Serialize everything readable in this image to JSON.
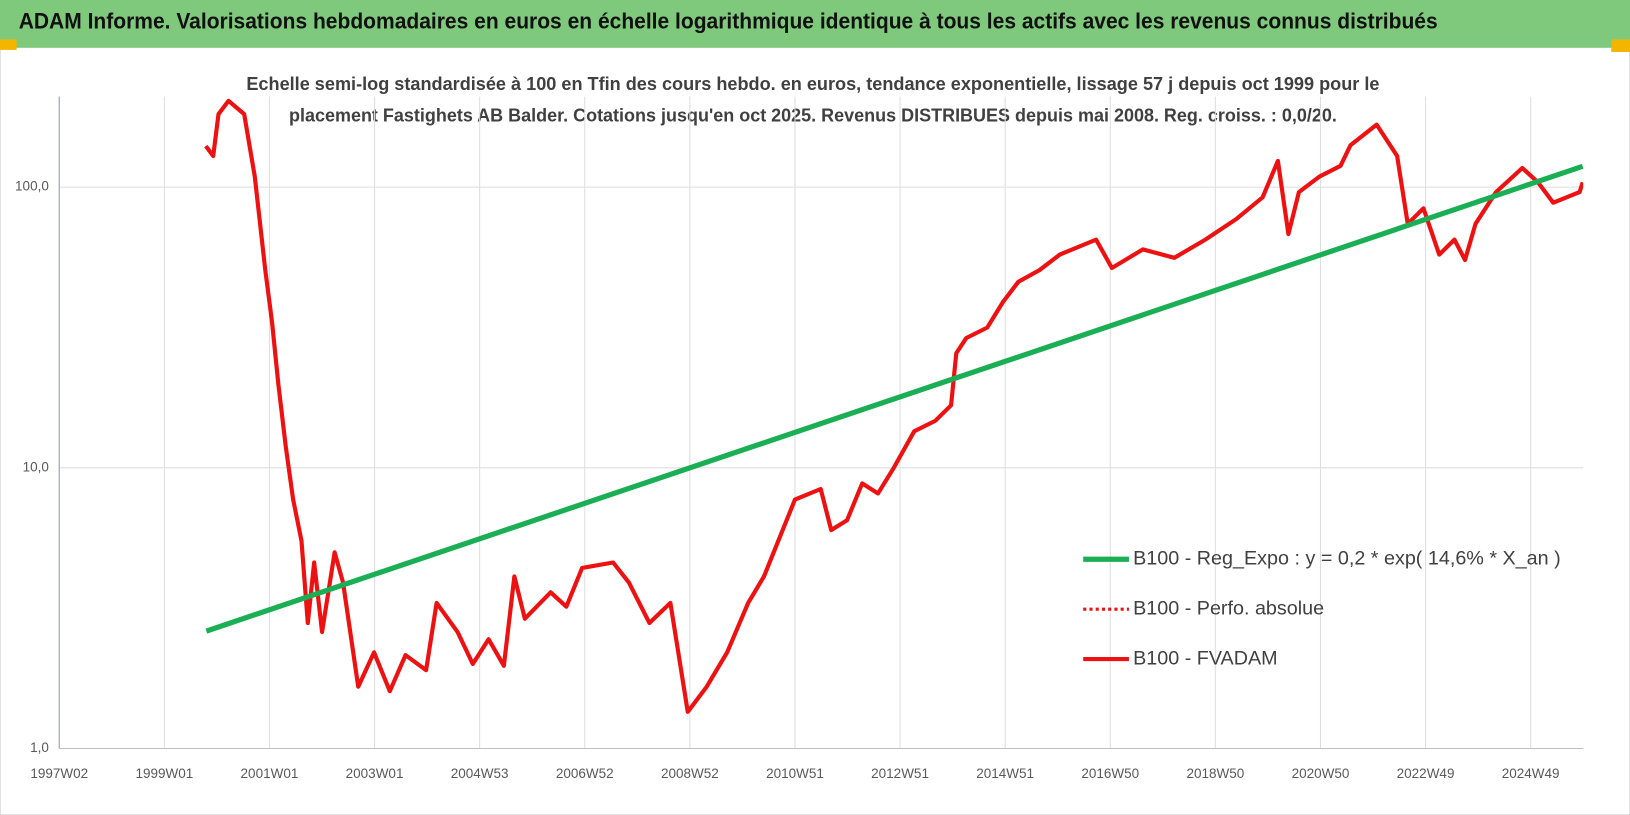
{
  "chart_data": {
    "type": "line",
    "title": "ADAM Informe. Valorisations hebdomadaires en euros en échelle logarithmique identique à tous les actifs avec les revenus connus distribués",
    "subtitle": [
      "Echelle semi-log standardisée à 100 en Tfin des cours hebdo. en euros, tendance exponentielle, lissage 57 j depuis oct 1999 pour le",
      "placement Fastighets AB Balder. Cotations jusqu'en oct 2025. Revenus DISTRIBUES depuis mai 2008. Reg. croiss. : 0,0/20."
    ],
    "log_y": true,
    "grid": true,
    "legend": "right",
    "xlim": [
      1997,
      2026
    ],
    "xticks": [
      {
        "value": 1997,
        "label": "1997W02"
      },
      {
        "value": 1999,
        "label": "1999W01"
      },
      {
        "value": 2001,
        "label": "2001W01"
      },
      {
        "value": 2003,
        "label": "2003W01"
      },
      {
        "value": 2005,
        "label": "2004W53"
      },
      {
        "value": 2007,
        "label": "2006W52"
      },
      {
        "value": 2009,
        "label": "2008W52"
      },
      {
        "value": 2011,
        "label": "2010W51"
      },
      {
        "value": 2013,
        "label": "2012W51"
      },
      {
        "value": 2015,
        "label": "2014W51"
      },
      {
        "value": 2017,
        "label": "2016W50"
      },
      {
        "value": 2019,
        "label": "2018W50"
      },
      {
        "value": 2021,
        "label": "2020W50"
      },
      {
        "value": 2023,
        "label": "2022W49"
      },
      {
        "value": 2025,
        "label": "2024W49"
      }
    ],
    "ylim": [
      1,
      210
    ],
    "yticks": [
      {
        "value": 1,
        "label": "1,0"
      },
      {
        "value": 10,
        "label": "10,0"
      },
      {
        "value": 100,
        "label": "100,0"
      }
    ],
    "series": [
      {
        "name": "B100 - Reg_Expo : y = 0,2 * exp( 14,6% *  X_an )",
        "color": "#1aaf54",
        "width": 5,
        "dash": "solid",
        "x": [
          1999.8,
          2025.99
        ],
        "values": [
          2.62,
          118.6
        ]
      },
      {
        "name": "B100 - Perfo. absolue",
        "color": "#ee1111",
        "width": 3,
        "dash": "dotted",
        "x": [],
        "values": []
      },
      {
        "name": "B100 - FVADAM",
        "color": "#ee1111",
        "width": 4,
        "dash": "solid",
        "x": [
          1999.79,
          1999.93,
          2000.03,
          2000.22,
          2000.52,
          2000.72,
          2000.92,
          2001.05,
          2001.17,
          2001.31,
          2001.45,
          2001.61,
          2001.73,
          2001.85,
          2002.0,
          2002.24,
          2002.4,
          2002.69,
          2002.99,
          2003.29,
          2003.59,
          2003.98,
          2004.18,
          2004.58,
          2004.87,
          2005.17,
          2005.46,
          2005.66,
          2005.86,
          2006.35,
          2006.65,
          2006.95,
          2007.54,
          2007.84,
          2008.23,
          2008.63,
          2008.96,
          2009.32,
          2009.71,
          2010.11,
          2010.41,
          2011.0,
          2011.49,
          2011.69,
          2011.99,
          2012.28,
          2012.58,
          2012.88,
          2013.27,
          2013.67,
          2013.97,
          2014.07,
          2014.26,
          2014.66,
          2014.96,
          2015.25,
          2015.65,
          2016.04,
          2016.73,
          2017.03,
          2017.62,
          2018.22,
          2018.81,
          2019.4,
          2019.9,
          2020.19,
          2020.39,
          2020.59,
          2020.98,
          2021.38,
          2021.57,
          2022.07,
          2022.46,
          2022.66,
          2022.96,
          2023.26,
          2023.55,
          2023.75,
          2023.95,
          2024.34,
          2024.84,
          2025.14,
          2025.43,
          2025.93,
          2025.99
        ],
        "values": [
          140,
          129,
          182,
          203,
          182,
          109,
          50.6,
          33,
          19.8,
          11.9,
          7.7,
          5.5,
          2.8,
          4.6,
          2.6,
          5.0,
          3.9,
          1.66,
          2.2,
          1.6,
          2.15,
          1.9,
          3.3,
          2.6,
          2.0,
          2.45,
          1.97,
          4.1,
          2.9,
          3.6,
          3.2,
          4.4,
          4.6,
          3.9,
          2.8,
          3.3,
          1.35,
          1.66,
          2.2,
          3.3,
          4.1,
          7.7,
          8.4,
          6.0,
          6.5,
          8.8,
          8.1,
          10,
          13.5,
          14.7,
          16.7,
          25.6,
          29,
          31.6,
          39,
          46,
          50.6,
          57.5,
          65,
          51.5,
          60,
          56,
          65,
          77,
          92,
          124,
          68,
          96,
          109,
          119,
          141,
          167,
          129,
          74,
          84,
          57.5,
          65,
          55,
          74,
          96,
          117,
          104,
          88,
          96,
          104
        ]
      }
    ]
  }
}
